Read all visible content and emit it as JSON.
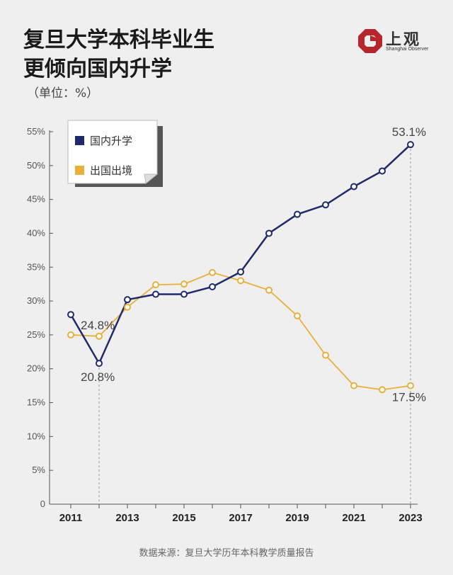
{
  "header": {
    "title_line1": "复旦大学本科毕业生",
    "title_line2": "更倾向国内升学",
    "unit": "（单位：%）",
    "logo_text": "上观",
    "logo_sub": "Shanghai Observer"
  },
  "footer": {
    "source": "数据来源：复旦大学历年本科教学质量报告"
  },
  "colors": {
    "domestic": "#1f2a6b",
    "abroad": "#e8b03a",
    "logo_red": "#b5272d"
  },
  "chart_data": {
    "type": "line",
    "x": [
      2011,
      2012,
      2013,
      2014,
      2015,
      2016,
      2017,
      2018,
      2019,
      2020,
      2021,
      2022,
      2023
    ],
    "x_tick_labels": [
      "2011",
      "2013",
      "2015",
      "2017",
      "2019",
      "2021",
      "2023"
    ],
    "y_tick_labels": [
      "0",
      "5%",
      "10%",
      "15%",
      "20%",
      "25%",
      "30%",
      "35%",
      "40%",
      "45%",
      "50%",
      "55%"
    ],
    "ylim": [
      0,
      55
    ],
    "grid": false,
    "legend_position": "top-left",
    "series": [
      {
        "name": "国内升学",
        "color": "#1f2a6b",
        "values": [
          28.0,
          20.8,
          30.2,
          31.0,
          31.0,
          32.1,
          34.3,
          40.0,
          42.8,
          44.2,
          46.9,
          49.2,
          53.1
        ]
      },
      {
        "name": "出国出境",
        "color": "#e8b03a",
        "values": [
          25.0,
          24.8,
          29.1,
          32.4,
          32.5,
          34.2,
          33.0,
          31.6,
          27.8,
          22.0,
          17.5,
          16.9,
          17.5
        ]
      }
    ],
    "annotations": [
      {
        "text": "24.8%",
        "x": 2012,
        "series": 1
      },
      {
        "text": "20.8%",
        "x": 2012,
        "series": 0
      },
      {
        "text": "53.1%",
        "x": 2023,
        "series": 0
      },
      {
        "text": "17.5%",
        "x": 2023,
        "series": 1
      }
    ]
  }
}
